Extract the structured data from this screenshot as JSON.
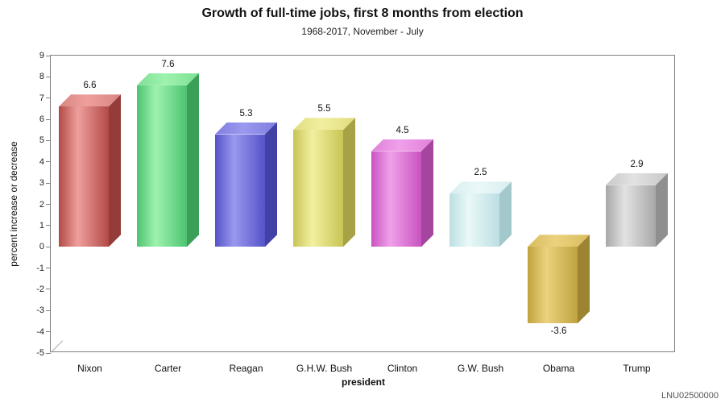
{
  "header": {
    "title": "Growth of full-time jobs, first 8 months from election",
    "subtitle": "1968-2017, November - July"
  },
  "axes": {
    "ylabel": "percent increase or decrease",
    "xlabel": "president"
  },
  "watermark": "LNU02500000",
  "chart_data": {
    "type": "bar",
    "style": "3d-bars",
    "title": "Growth of full-time jobs, first 8 months from election",
    "subtitle": "1968-2017, November - July",
    "xlabel": "president",
    "ylabel": "percent increase or decrease",
    "categories": [
      "Nixon",
      "Carter",
      "Reagan",
      "G.H.W. Bush",
      "Clinton",
      "G.W. Bush",
      "Obama",
      "Trump"
    ],
    "values": [
      6.6,
      7.6,
      5.3,
      5.5,
      4.5,
      2.5,
      -3.6,
      2.9
    ],
    "value_labels": [
      "6.6",
      "7.6",
      "5.3",
      "5.5",
      "4.5",
      "2.5",
      "-3.6",
      "2.9"
    ],
    "ylim": [
      -5,
      9
    ],
    "ytick_step": 1,
    "yticks": [
      9,
      8,
      7,
      6,
      5,
      4,
      3,
      2,
      1,
      0,
      -1,
      -2,
      -3,
      -4,
      -5
    ],
    "grid": false,
    "legend": false,
    "source_code": "LNU02500000",
    "bar_colors": [
      {
        "name": "red",
        "light": "#ef9f9c",
        "dark": "#b24a47",
        "top": "#d88683",
        "side": "#943c3a"
      },
      {
        "name": "green",
        "light": "#9ef2ae",
        "dark": "#4cc470",
        "top": "#7ee093",
        "side": "#3aa058"
      },
      {
        "name": "blue",
        "light": "#9a98ee",
        "dark": "#5553c8",
        "top": "#807ee0",
        "side": "#4341a5"
      },
      {
        "name": "yellow",
        "light": "#f2f0a0",
        "dark": "#c8c455",
        "top": "#e0dc80",
        "side": "#a6a245"
      },
      {
        "name": "magenta",
        "light": "#f0a0ea",
        "dark": "#c853c0",
        "top": "#e080da",
        "side": "#a545a0"
      },
      {
        "name": "cyan",
        "light": "#eaf8f8",
        "dark": "#bcdfe2",
        "top": "#d8eef0",
        "side": "#a2c8cc"
      },
      {
        "name": "gold",
        "light": "#ecd27e",
        "dark": "#c0a23e",
        "top": "#d9bc5f",
        "side": "#9d8433"
      },
      {
        "name": "silver",
        "light": "#e2e2e2",
        "dark": "#a8a8a8",
        "top": "#c8c8c8",
        "side": "#8f8f8f"
      }
    ]
  }
}
